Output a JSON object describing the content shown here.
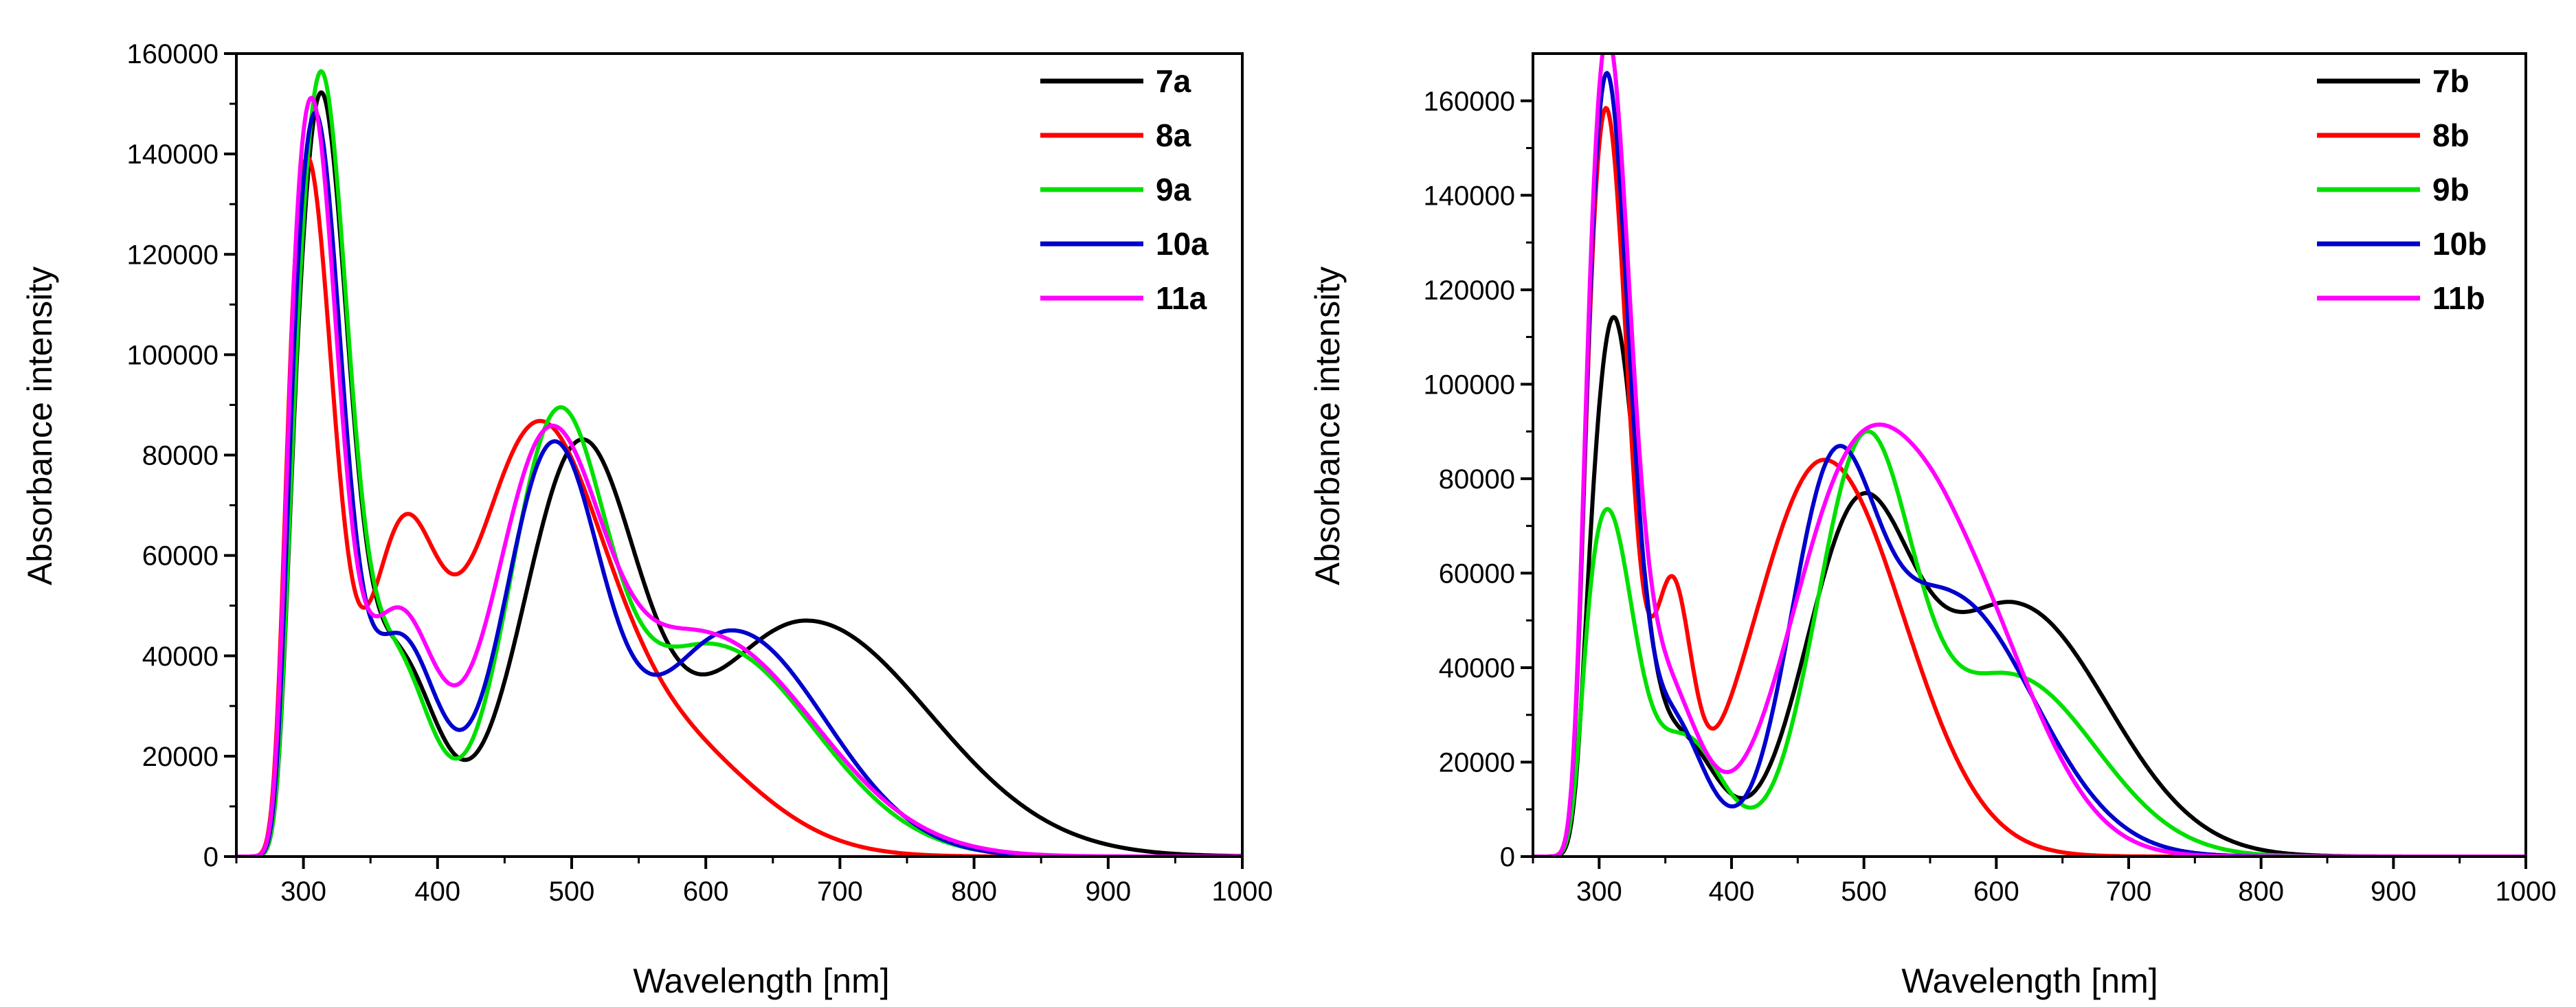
{
  "chart_data": [
    {
      "type": "line",
      "title": "",
      "xlabel": "Wavelength [nm]",
      "ylabel": "Absorbance intensity",
      "xlim": [
        250,
        1000
      ],
      "ylim": [
        0,
        160000
      ],
      "xticks": [
        300,
        400,
        500,
        600,
        700,
        800,
        900,
        1000
      ],
      "yticks": [
        0,
        20000,
        40000,
        60000,
        80000,
        100000,
        120000,
        140000,
        160000
      ],
      "legend_position": "top-right",
      "series": [
        {
          "name": "7a",
          "color": "#000000",
          "peaks": [
            [
              312,
              145000,
              20
            ],
            [
              368,
              40000,
              30
            ],
            [
              505,
              78000,
              42
            ],
            [
              675,
              47000,
              80
            ]
          ],
          "tail": 700
        },
        {
          "name": "8a",
          "color": "#ff0000",
          "peaks": [
            [
              302,
              138000,
              20
            ],
            [
              372,
              57000,
              26
            ],
            [
              470,
              78000,
              48
            ],
            [
              560,
              25000,
              60
            ]
          ],
          "tail": 600
        },
        {
          "name": "9a",
          "color": "#00e000",
          "peaks": [
            [
              312,
              150000,
              20
            ],
            [
              366,
              40000,
              28
            ],
            [
              488,
              81000,
              36
            ],
            [
              606,
              42000,
              65
            ]
          ],
          "tail": 1100
        },
        {
          "name": "10a",
          "color": "#0000cc",
          "peaks": [
            [
              308,
              145000,
              20
            ],
            [
              372,
              43000,
              28
            ],
            [
              485,
              79000,
              36
            ],
            [
              620,
              45000,
              60
            ]
          ],
          "tail": 800
        },
        {
          "name": "11a",
          "color": "#ff00ff",
          "peaks": [
            [
              305,
              148000,
              20
            ],
            [
              370,
              47000,
              28
            ],
            [
              480,
              75000,
              40
            ],
            [
              600,
              44000,
              70
            ]
          ],
          "tail": 700
        }
      ]
    },
    {
      "type": "line",
      "title": "",
      "xlabel": "Wavelength [nm]",
      "ylabel": "Absorbance intensity",
      "xlim": [
        250,
        1000
      ],
      "ylim": [
        0,
        170000
      ],
      "xticks": [
        300,
        400,
        500,
        600,
        700,
        800,
        900,
        1000
      ],
      "yticks": [
        0,
        20000,
        40000,
        60000,
        80000,
        100000,
        120000,
        140000,
        160000
      ],
      "legend_position": "top-right",
      "series": [
        {
          "name": "7b",
          "color": "#000000",
          "peaks": [
            [
              310,
              109000,
              18
            ],
            [
              360,
              25000,
              28
            ],
            [
              495,
              69000,
              40
            ],
            [
              615,
              53000,
              60
            ]
          ],
          "tail": 700
        },
        {
          "name": "8b",
          "color": "#ff0000",
          "peaks": [
            [
              305,
              158000,
              17
            ],
            [
              355,
              50000,
              14
            ],
            [
              470,
              84000,
              52
            ]
          ],
          "tail": 600
        },
        {
          "name": "9b",
          "color": "#00e000",
          "peaks": [
            [
              305,
              71000,
              20
            ],
            [
              365,
              25000,
              28
            ],
            [
              500,
              85000,
              36
            ],
            [
              612,
              38000,
              55
            ]
          ],
          "tail": 900
        },
        {
          "name": "10b",
          "color": "#0000cc",
          "peaks": [
            [
              305,
              160000,
              17
            ],
            [
              352,
              30000,
              26
            ],
            [
              475,
              71000,
              32
            ],
            [
              565,
              55000,
              55
            ]
          ],
          "tail": 700
        },
        {
          "name": "11b",
          "color": "#ff00ff",
          "peaks": [
            [
              305,
              160000,
              17
            ],
            [
              345,
              38000,
              28
            ],
            [
              485,
              68000,
              46
            ],
            [
              565,
              60000,
              50
            ]
          ],
          "tail": 700
        }
      ]
    }
  ]
}
